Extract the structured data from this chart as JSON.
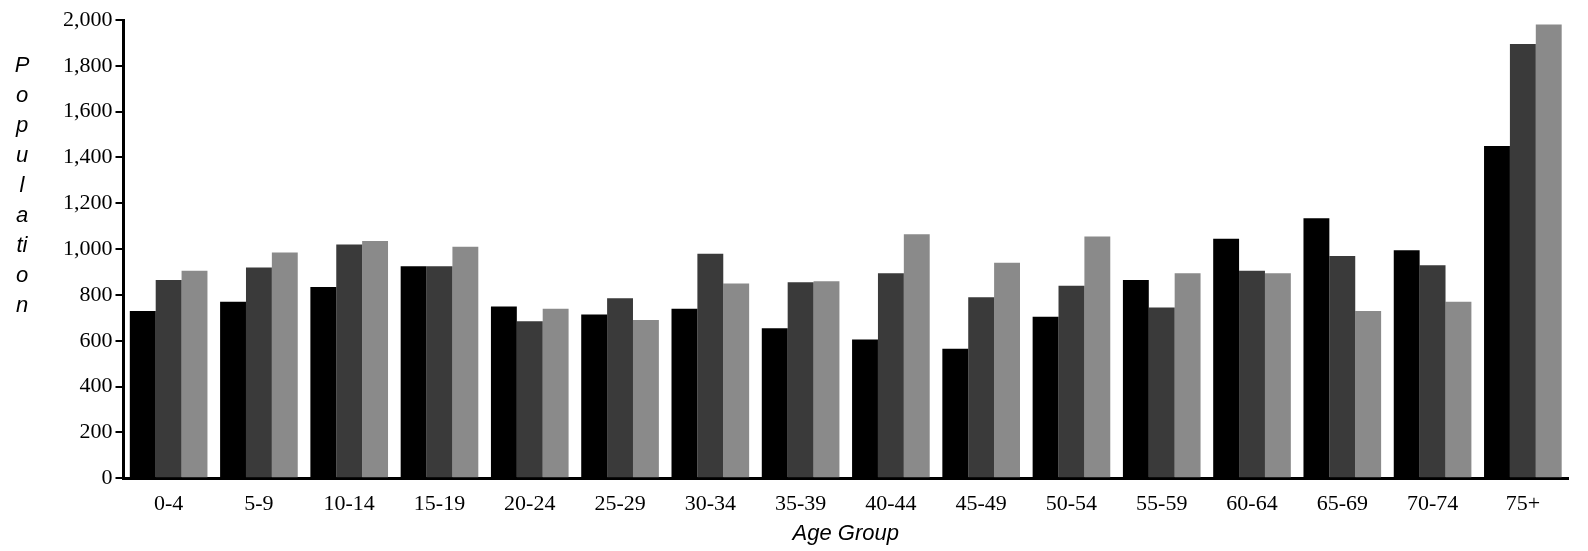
{
  "chart_data": {
    "type": "bar",
    "xlabel": "Age Group",
    "ylabel": "Population",
    "categories": [
      "0-4",
      "5-9",
      "10-14",
      "15-19",
      "20-24",
      "25-29",
      "30-34",
      "35-39",
      "40-44",
      "45-49",
      "50-54",
      "55-59",
      "60-64",
      "65-69",
      "70-74",
      "75+"
    ],
    "series": [
      {
        "color": "#000000",
        "values": [
          730,
          770,
          835,
          925,
          750,
          715,
          740,
          655,
          605,
          565,
          705,
          865,
          1045,
          1135,
          995,
          1450
        ]
      },
      {
        "color": "#3a3a3a",
        "values": [
          865,
          920,
          1020,
          925,
          685,
          785,
          980,
          855,
          895,
          790,
          840,
          745,
          905,
          970,
          930,
          1895
        ]
      },
      {
        "color": "#8a8a8a",
        "values": [
          905,
          985,
          1035,
          1010,
          740,
          690,
          850,
          860,
          1065,
          940,
          1055,
          895,
          895,
          730,
          770,
          1980
        ]
      }
    ],
    "ylim": [
      0,
      2000
    ],
    "yticks": [
      0,
      200,
      400,
      600,
      800,
      {
        "value": 1000,
        "label": "1,000"
      },
      {
        "value": 1200,
        "label": "1,200"
      },
      {
        "value": 1400,
        "label": "1,400"
      },
      {
        "value": 1600,
        "label": "1,600"
      },
      {
        "value": 1800,
        "label": "1,800"
      },
      {
        "value": 2000,
        "label": "2,000"
      }
    ],
    "grid": false,
    "legend": false
  }
}
